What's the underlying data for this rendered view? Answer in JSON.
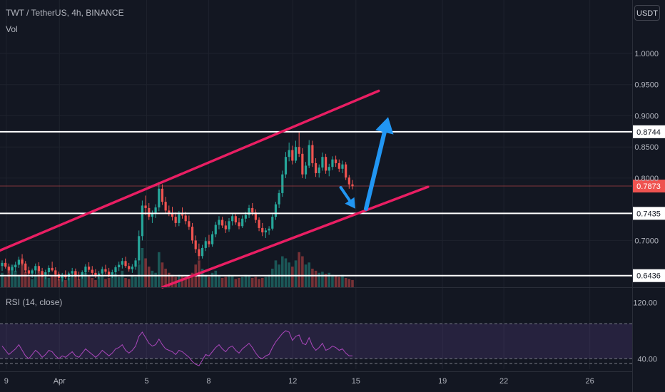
{
  "header": {
    "symbol_line": "TWT / TetherUS, 4h, BINANCE",
    "volume_label": "Vol",
    "currency": "USDT"
  },
  "rsi": {
    "label": "RSI (14, close)",
    "axis_ticks": [
      "120.00",
      "40.00"
    ]
  },
  "colors": {
    "background": "#131722",
    "up": "#26a69a",
    "down": "#ef5350",
    "channel": "#e91e63",
    "arrow": "#2196f3",
    "level_line": "#ffffff",
    "rsi_line": "#ab47bc"
  },
  "chart_data": {
    "type": "candlestick",
    "title": "TWT / TetherUS, 4h, BINANCE",
    "y_axis": {
      "ticks": [
        1.0,
        0.95,
        0.9,
        0.85,
        0.8,
        0.7
      ],
      "range": [
        0.625,
        1.04
      ]
    },
    "x_axis": {
      "ticks": [
        "9",
        "Apr",
        "5",
        "8",
        "12",
        "15",
        "19",
        "22",
        "26"
      ]
    },
    "candles": [
      [
        0.659,
        0.668,
        0.651,
        0.664
      ],
      [
        0.664,
        0.671,
        0.655,
        0.658
      ],
      [
        0.658,
        0.663,
        0.648,
        0.652
      ],
      [
        0.652,
        0.66,
        0.645,
        0.657
      ],
      [
        0.657,
        0.666,
        0.65,
        0.661
      ],
      [
        0.661,
        0.674,
        0.656,
        0.669
      ],
      [
        0.669,
        0.678,
        0.66,
        0.663
      ],
      [
        0.663,
        0.667,
        0.648,
        0.652
      ],
      [
        0.652,
        0.658,
        0.643,
        0.647
      ],
      [
        0.647,
        0.655,
        0.64,
        0.652
      ],
      [
        0.652,
        0.663,
        0.646,
        0.659
      ],
      [
        0.659,
        0.665,
        0.648,
        0.651
      ],
      [
        0.651,
        0.656,
        0.641,
        0.645
      ],
      [
        0.645,
        0.653,
        0.638,
        0.649
      ],
      [
        0.649,
        0.66,
        0.644,
        0.656
      ],
      [
        0.656,
        0.666,
        0.65,
        0.652
      ],
      [
        0.652,
        0.657,
        0.642,
        0.646
      ],
      [
        0.646,
        0.65,
        0.636,
        0.64
      ],
      [
        0.64,
        0.648,
        0.634,
        0.645
      ],
      [
        0.645,
        0.652,
        0.638,
        0.641
      ],
      [
        0.641,
        0.65,
        0.636,
        0.647
      ],
      [
        0.647,
        0.656,
        0.641,
        0.651
      ],
      [
        0.651,
        0.655,
        0.641,
        0.644
      ],
      [
        0.644,
        0.65,
        0.637,
        0.642
      ],
      [
        0.642,
        0.652,
        0.639,
        0.649
      ],
      [
        0.649,
        0.662,
        0.645,
        0.658
      ],
      [
        0.658,
        0.665,
        0.649,
        0.653
      ],
      [
        0.653,
        0.659,
        0.644,
        0.648
      ],
      [
        0.648,
        0.654,
        0.64,
        0.643
      ],
      [
        0.643,
        0.651,
        0.639,
        0.647
      ],
      [
        0.647,
        0.658,
        0.643,
        0.654
      ],
      [
        0.654,
        0.661,
        0.646,
        0.65
      ],
      [
        0.65,
        0.656,
        0.641,
        0.645
      ],
      [
        0.645,
        0.653,
        0.64,
        0.649
      ],
      [
        0.649,
        0.66,
        0.645,
        0.657
      ],
      [
        0.657,
        0.666,
        0.651,
        0.661
      ],
      [
        0.661,
        0.672,
        0.655,
        0.667
      ],
      [
        0.667,
        0.674,
        0.656,
        0.659
      ],
      [
        0.659,
        0.664,
        0.65,
        0.654
      ],
      [
        0.654,
        0.662,
        0.648,
        0.658
      ],
      [
        0.658,
        0.672,
        0.653,
        0.668
      ],
      [
        0.668,
        0.716,
        0.662,
        0.707
      ],
      [
        0.707,
        0.764,
        0.7,
        0.756
      ],
      [
        0.756,
        0.772,
        0.741,
        0.752
      ],
      [
        0.752,
        0.76,
        0.733,
        0.738
      ],
      [
        0.738,
        0.748,
        0.728,
        0.744
      ],
      [
        0.744,
        0.758,
        0.736,
        0.753
      ],
      [
        0.753,
        0.794,
        0.747,
        0.783
      ],
      [
        0.783,
        0.79,
        0.757,
        0.762
      ],
      [
        0.762,
        0.77,
        0.743,
        0.748
      ],
      [
        0.748,
        0.756,
        0.739,
        0.744
      ],
      [
        0.744,
        0.754,
        0.732,
        0.738
      ],
      [
        0.738,
        0.745,
        0.722,
        0.728
      ],
      [
        0.728,
        0.747,
        0.723,
        0.742
      ],
      [
        0.742,
        0.753,
        0.735,
        0.74
      ],
      [
        0.74,
        0.746,
        0.726,
        0.731
      ],
      [
        0.731,
        0.74,
        0.717,
        0.722
      ],
      [
        0.722,
        0.728,
        0.695,
        0.7
      ],
      [
        0.7,
        0.708,
        0.68,
        0.686
      ],
      [
        0.686,
        0.695,
        0.669,
        0.675
      ],
      [
        0.675,
        0.693,
        0.671,
        0.688
      ],
      [
        0.688,
        0.705,
        0.683,
        0.699
      ],
      [
        0.699,
        0.709,
        0.689,
        0.694
      ],
      [
        0.694,
        0.715,
        0.69,
        0.71
      ],
      [
        0.71,
        0.73,
        0.705,
        0.725
      ],
      [
        0.725,
        0.739,
        0.718,
        0.733
      ],
      [
        0.733,
        0.738,
        0.72,
        0.724
      ],
      [
        0.724,
        0.731,
        0.712,
        0.718
      ],
      [
        0.718,
        0.736,
        0.714,
        0.731
      ],
      [
        0.731,
        0.744,
        0.724,
        0.739
      ],
      [
        0.739,
        0.743,
        0.725,
        0.729
      ],
      [
        0.729,
        0.736,
        0.718,
        0.723
      ],
      [
        0.723,
        0.74,
        0.72,
        0.735
      ],
      [
        0.735,
        0.746,
        0.729,
        0.741
      ],
      [
        0.741,
        0.757,
        0.736,
        0.752
      ],
      [
        0.752,
        0.76,
        0.74,
        0.745
      ],
      [
        0.745,
        0.75,
        0.728,
        0.733
      ],
      [
        0.733,
        0.737,
        0.715,
        0.72
      ],
      [
        0.72,
        0.728,
        0.707,
        0.713
      ],
      [
        0.713,
        0.72,
        0.704,
        0.716
      ],
      [
        0.716,
        0.723,
        0.709,
        0.719
      ],
      [
        0.719,
        0.742,
        0.716,
        0.738
      ],
      [
        0.738,
        0.762,
        0.733,
        0.758
      ],
      [
        0.758,
        0.781,
        0.752,
        0.776
      ],
      [
        0.776,
        0.812,
        0.77,
        0.806
      ],
      [
        0.806,
        0.842,
        0.8,
        0.834
      ],
      [
        0.834,
        0.857,
        0.827,
        0.845
      ],
      [
        0.845,
        0.852,
        0.822,
        0.828
      ],
      [
        0.828,
        0.86,
        0.824,
        0.85
      ],
      [
        0.85,
        0.874,
        0.834,
        0.839
      ],
      [
        0.839,
        0.848,
        0.8,
        0.806
      ],
      [
        0.806,
        0.826,
        0.799,
        0.82
      ],
      [
        0.82,
        0.861,
        0.816,
        0.853
      ],
      [
        0.853,
        0.86,
        0.818,
        0.824
      ],
      [
        0.824,
        0.832,
        0.802,
        0.808
      ],
      [
        0.808,
        0.822,
        0.801,
        0.817
      ],
      [
        0.817,
        0.841,
        0.812,
        0.834
      ],
      [
        0.834,
        0.839,
        0.807,
        0.812
      ],
      [
        0.812,
        0.823,
        0.803,
        0.818
      ],
      [
        0.818,
        0.835,
        0.813,
        0.83
      ],
      [
        0.83,
        0.836,
        0.818,
        0.824
      ],
      [
        0.824,
        0.83,
        0.81,
        0.815
      ],
      [
        0.815,
        0.828,
        0.808,
        0.822
      ],
      [
        0.822,
        0.826,
        0.797,
        0.801
      ],
      [
        0.801,
        0.805,
        0.783,
        0.79
      ],
      [
        0.79,
        0.797,
        0.782,
        0.787
      ]
    ],
    "volumes": [
      14,
      10,
      20,
      22,
      16,
      12,
      28,
      15,
      10,
      8,
      12,
      18,
      14,
      10,
      9,
      11,
      13,
      8,
      10,
      7,
      9,
      12,
      15,
      8,
      10,
      14,
      11,
      9,
      7,
      10,
      12,
      8,
      9,
      11,
      13,
      10,
      16,
      9,
      8,
      12,
      10,
      22,
      38,
      28,
      20,
      16,
      14,
      34,
      24,
      18,
      14,
      12,
      10,
      12,
      11,
      10,
      9,
      14,
      22,
      26,
      18,
      12,
      10,
      14,
      16,
      11,
      9,
      10,
      12,
      11,
      8,
      9,
      10,
      12,
      11,
      9,
      10,
      8,
      9,
      10,
      12,
      18,
      26,
      22,
      30,
      28,
      24,
      20,
      26,
      34,
      30,
      22,
      24,
      18,
      16,
      14,
      15,
      13,
      14,
      12,
      11,
      10,
      12,
      9,
      8,
      7
    ],
    "rsi": [
      58,
      52,
      46,
      50,
      54,
      60,
      52,
      44,
      40,
      46,
      52,
      48,
      42,
      46,
      52,
      50,
      44,
      40,
      44,
      42,
      46,
      50,
      44,
      42,
      48,
      54,
      50,
      46,
      42,
      46,
      52,
      48,
      44,
      48,
      54,
      56,
      60,
      52,
      48,
      52,
      58,
      72,
      78,
      70,
      62,
      58,
      60,
      68,
      60,
      54,
      52,
      50,
      46,
      52,
      50,
      46,
      42,
      36,
      32,
      30,
      38,
      46,
      44,
      50,
      56,
      60,
      54,
      50,
      56,
      58,
      52,
      48,
      54,
      58,
      62,
      56,
      48,
      42,
      40,
      44,
      46,
      56,
      64,
      70,
      76,
      80,
      78,
      66,
      72,
      74,
      62,
      60,
      70,
      58,
      52,
      56,
      62,
      52,
      54,
      58,
      56,
      52,
      54,
      48,
      44,
      44
    ],
    "horizontal_levels": [
      0.8744,
      0.7435,
      0.6436
    ],
    "last_price": 0.7873,
    "channel": {
      "upper": [
        [
          0.0,
          0.684
        ],
        [
          0.599,
          0.94
        ]
      ],
      "lower": [
        [
          0.257,
          0.625
        ],
        [
          0.677,
          0.786
        ]
      ]
    },
    "projection_arrows": [
      {
        "from": [
          0.539,
          0.785
        ],
        "to": [
          0.562,
          0.751
        ]
      },
      {
        "from": [
          0.579,
          0.751
        ],
        "to": [
          0.614,
          0.898
        ]
      }
    ],
    "rsi_range": [
      25,
      135
    ],
    "rsi_bands": [
      90,
      40
    ]
  }
}
